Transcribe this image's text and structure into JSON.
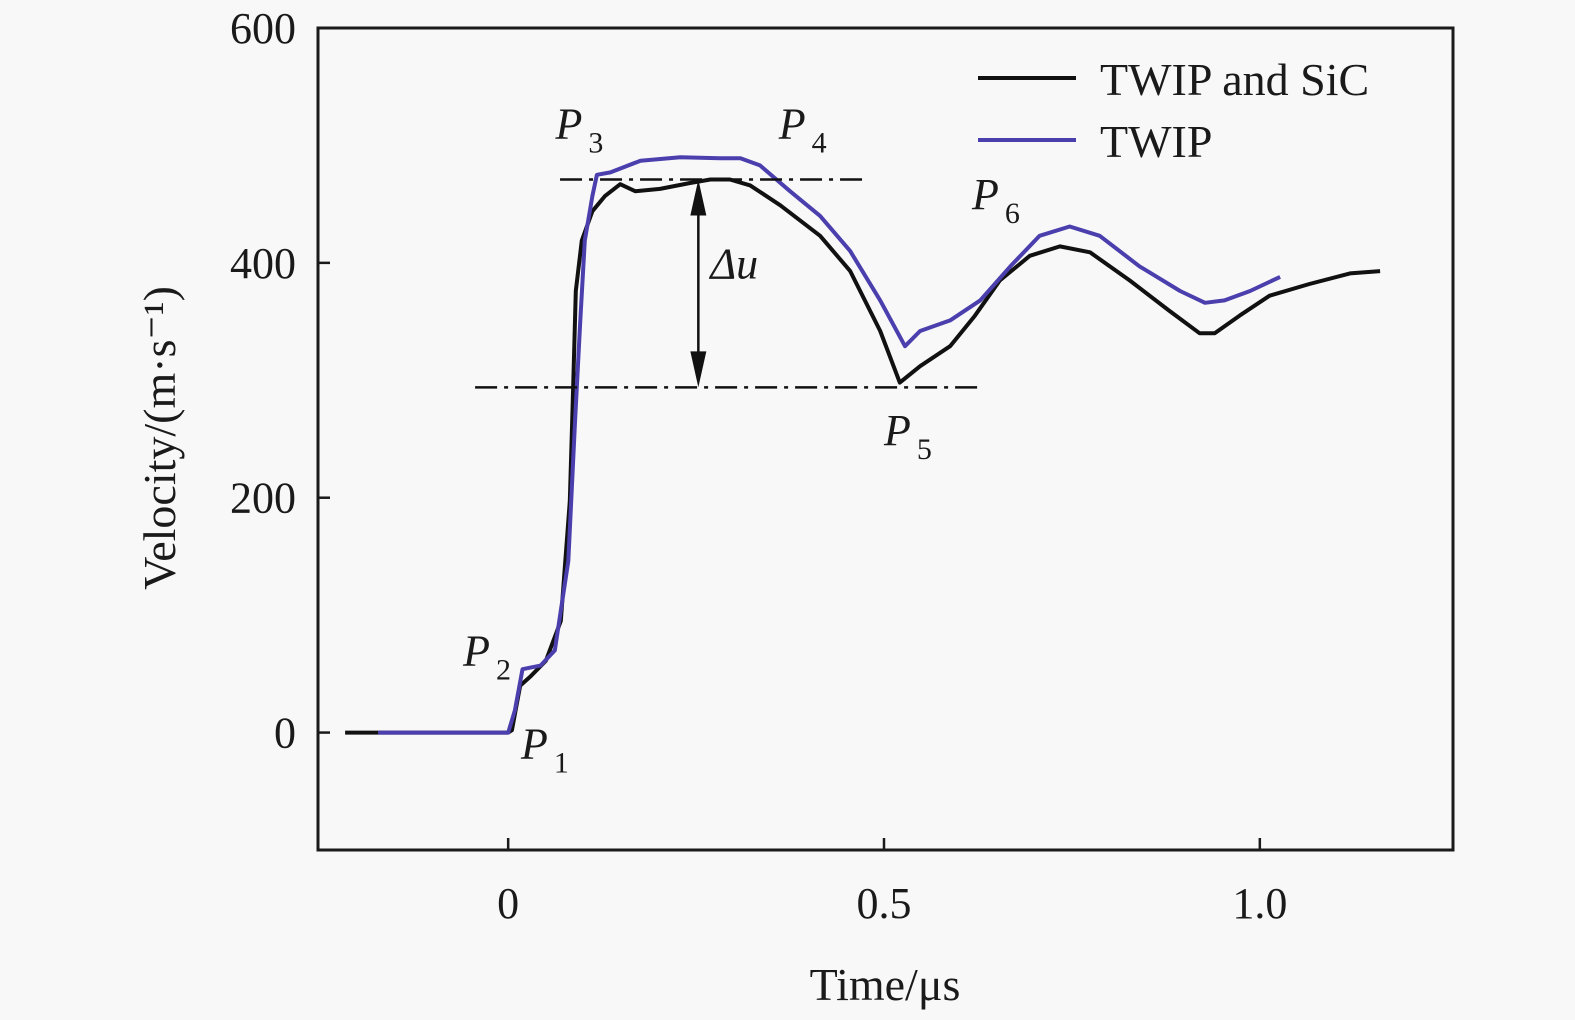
{
  "chart_data": {
    "type": "line",
    "xlabel": "Time/μs",
    "ylabel": "Velocity/(m·s⁻¹)",
    "xlim": [
      -0.253,
      1.257
    ],
    "ylim": [
      -100,
      600
    ],
    "xticks": [
      0,
      0.5,
      1.0
    ],
    "xtick_labels": [
      "0",
      "0.5",
      "1.0"
    ],
    "yticks": [
      0,
      200,
      400,
      600
    ],
    "ytick_labels": [
      "0",
      "200",
      "400",
      "600"
    ],
    "grid": false,
    "legend": "top-right",
    "series": [
      {
        "name": "TWIP and SiC",
        "color": "#111111",
        "x": [
          -0.217,
          0,
          0.005,
          0.016,
          0.03,
          0.05,
          0.07,
          0.082,
          0.086,
          0.09,
          0.098,
          0.112,
          0.129,
          0.149,
          0.169,
          0.202,
          0.242,
          0.269,
          0.295,
          0.322,
          0.362,
          0.415,
          0.455,
          0.495,
          0.521,
          0.548,
          0.588,
          0.621,
          0.654,
          0.694,
          0.734,
          0.774,
          0.827,
          0.88,
          0.92,
          0.94,
          0.973,
          1.013,
          1.066,
          1.12,
          1.16
        ],
        "y": [
          0,
          0,
          2,
          40,
          48,
          61,
          95,
          197,
          283,
          376,
          419,
          444,
          457,
          467,
          461,
          463,
          468,
          471,
          471,
          466,
          449,
          423,
          393,
          342,
          298,
          312,
          329,
          355,
          385,
          406,
          414,
          409,
          385,
          359,
          340,
          340,
          355,
          372,
          382,
          391,
          393
        ]
      },
      {
        "name": "TWIP",
        "color": "#4b3fae",
        "x": [
          -0.173,
          0,
          0.009,
          0.019,
          0.043,
          0.062,
          0.08,
          0.089,
          0.096,
          0.102,
          0.112,
          0.118,
          0.136,
          0.176,
          0.229,
          0.282,
          0.309,
          0.335,
          0.375,
          0.415,
          0.455,
          0.495,
          0.528,
          0.548,
          0.588,
          0.628,
          0.668,
          0.707,
          0.747,
          0.787,
          0.84,
          0.894,
          0.927,
          0.953,
          0.987,
          1.027
        ],
        "y": [
          0,
          0,
          19,
          54,
          57,
          70,
          146,
          266,
          351,
          419,
          457,
          475,
          477,
          487,
          490,
          489,
          489,
          483,
          461,
          440,
          410,
          368,
          329,
          342,
          351,
          368,
          397,
          423,
          431,
          423,
          397,
          376,
          366,
          368,
          376,
          388
        ]
      }
    ],
    "reference_lines": [
      {
        "y": 471,
        "x": [
          0.069,
          0.475
        ],
        "style": "dash-dot"
      },
      {
        "y": 294,
        "x": [
          -0.044,
          0.63
        ],
        "style": "dash-dot"
      }
    ],
    "arrow": {
      "label": "Δu",
      "x": 0.253,
      "y": [
        471,
        294
      ]
    },
    "annotations": [
      {
        "label": "P",
        "sub": "1",
        "x": 0.017,
        "y": -22
      },
      {
        "label": "P",
        "sub": "2",
        "x": -0.06,
        "y": 57
      },
      {
        "label": "P",
        "sub": "3",
        "x": 0.063,
        "y": 506
      },
      {
        "label": "P",
        "sub": "4",
        "x": 0.36,
        "y": 506
      },
      {
        "label": "P",
        "sub": "5",
        "x": 0.5,
        "y": 245
      },
      {
        "label": "P",
        "sub": "6",
        "x": 0.617,
        "y": 446
      }
    ]
  }
}
